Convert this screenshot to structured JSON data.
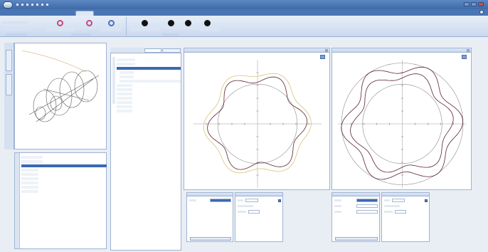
{
  "window": {
    "title": ""
  },
  "ribbon": {
    "tabs": [
      {
        "label": "",
        "active": false
      },
      {
        "label": "",
        "active": false
      },
      {
        "label": "",
        "active": true
      }
    ],
    "left_labels": [
      "",
      ""
    ],
    "tools": [
      {
        "icon": "ring-pink-icon",
        "caption": ""
      },
      {
        "icon": "ring-pink-icon",
        "caption": ""
      },
      {
        "icon": "ring-blue-icon",
        "caption": ""
      },
      {
        "icon": "dot-black-icon",
        "caption": ""
      },
      {
        "icon": "dot-black-icon",
        "caption": ""
      },
      {
        "icon": "dot-black-icon",
        "caption": ""
      },
      {
        "icon": "dot-black-icon",
        "caption": ""
      }
    ],
    "groups": [
      "",
      "",
      ""
    ]
  },
  "left": {
    "bottom_list": [
      "",
      "",
      "",
      "",
      "",
      "",
      "",
      "",
      ""
    ],
    "selected_index": 2
  },
  "middle": {
    "tabs": [
      "",
      ""
    ],
    "tree": [
      "",
      "",
      "",
      "",
      "",
      "",
      "",
      "",
      "",
      "",
      "",
      "",
      ""
    ],
    "selected_index": 2
  },
  "charts": [
    {
      "title": "",
      "type": "polar"
    },
    {
      "title": "",
      "type": "polar"
    }
  ],
  "properties": {
    "left_a": {
      "header": "",
      "row_label": "",
      "row_value": "",
      "button": ""
    },
    "left_b": {
      "header": "",
      "rows": [
        {
          "label": "",
          "value": ""
        },
        {
          "label": "",
          "value": ""
        },
        {
          "label": "",
          "value": ""
        }
      ]
    },
    "right_a": {
      "header": "",
      "rows": [
        {
          "label": "",
          "value": ""
        },
        {
          "label": "",
          "value": ""
        },
        {
          "label": "",
          "value": ""
        }
      ],
      "button": ""
    },
    "right_b": {
      "header": "",
      "rows": [
        {
          "label": "",
          "value": ""
        },
        {
          "label": "",
          "value": ""
        },
        {
          "label": "",
          "value": ""
        }
      ]
    }
  },
  "colors": {
    "accent": "#3a69b3",
    "series_dark": "#5a2230",
    "series_light": "#d9c27a",
    "reference_circle": "#8c8c8c"
  }
}
